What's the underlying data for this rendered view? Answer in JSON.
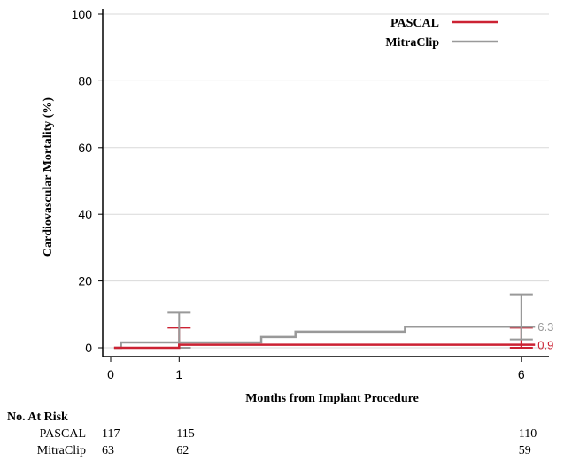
{
  "chart_data": {
    "type": "line",
    "ylabel": "Cardiovascular Mortality (%)",
    "xlabel": "Months from Implant Procedure",
    "ylim": [
      0,
      100
    ],
    "xlim": [
      0,
      6.5
    ],
    "y_ticks": [
      0,
      20,
      40,
      60,
      80,
      100
    ],
    "x_ticks": [
      0,
      1,
      6
    ],
    "grid": "horizontal",
    "legend_position": "top-right",
    "series": [
      {
        "name": "PASCAL",
        "color": "#cc2233",
        "steps": [
          [
            0.15,
            0
          ],
          [
            1.0,
            0.9
          ],
          [
            6.0,
            0.9
          ]
        ],
        "end_label": "0.9",
        "error_bars": [
          {
            "x": 1,
            "low": 0,
            "high": 6
          },
          {
            "x": 6,
            "low": 0,
            "high": 6
          }
        ]
      },
      {
        "name": "MitraClip",
        "color": "#999999",
        "steps": [
          [
            0.15,
            1.6
          ],
          [
            2.2,
            3.2
          ],
          [
            2.7,
            4.8
          ],
          [
            4.3,
            6.3
          ],
          [
            6.0,
            6.3
          ]
        ],
        "end_label": "6.3",
        "error_bars": [
          {
            "x": 1,
            "low": 0,
            "high": 10.5
          },
          {
            "x": 6,
            "low": 2.5,
            "high": 16
          }
        ]
      }
    ],
    "at_risk": {
      "title": "No. At Risk",
      "rows": [
        {
          "label": "PASCAL",
          "values": [
            {
              "x": 0,
              "v": "117"
            },
            {
              "x": 1,
              "v": "115"
            },
            {
              "x": 6,
              "v": "110"
            }
          ]
        },
        {
          "label": "MitraClip",
          "values": [
            {
              "x": 0,
              "v": "63"
            },
            {
              "x": 1,
              "v": "62"
            },
            {
              "x": 6,
              "v": "59"
            }
          ]
        }
      ]
    }
  }
}
